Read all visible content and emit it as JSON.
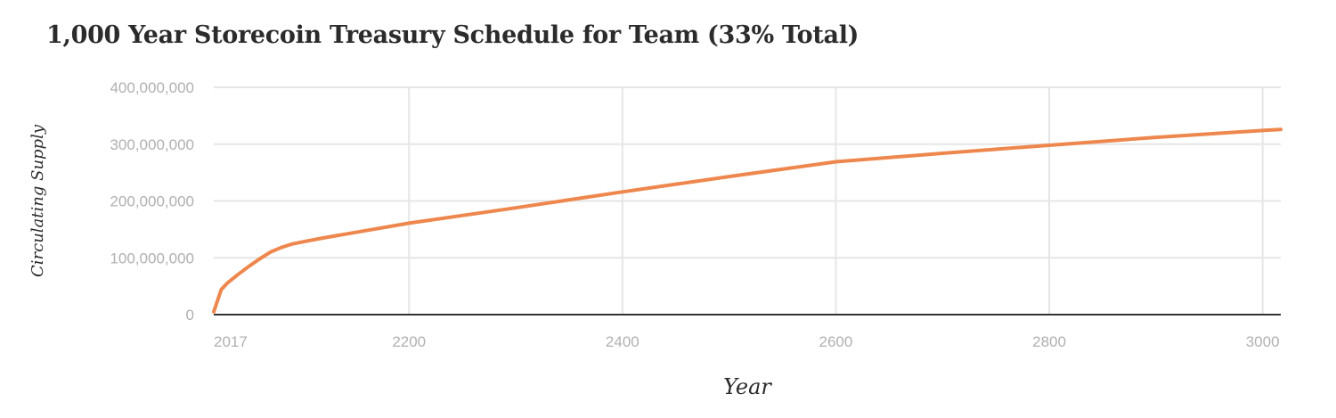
{
  "chart_data": {
    "type": "line",
    "title": "1,000 Year Storecoin Treasury Schedule for Team (33% Total)",
    "xlabel": "Year",
    "ylabel": "Circulating Supply",
    "xlim": [
      2017,
      3017
    ],
    "ylim": [
      0,
      400000000
    ],
    "x_ticks": [
      {
        "value": 2017,
        "label": "2017"
      },
      {
        "value": 2200,
        "label": "2200"
      },
      {
        "value": 2400,
        "label": "2400"
      },
      {
        "value": 2600,
        "label": "2600"
      },
      {
        "value": 2800,
        "label": "2800"
      },
      {
        "value": 3000,
        "label": "3000"
      }
    ],
    "y_ticks": [
      {
        "value": 0,
        "label": "0"
      },
      {
        "value": 100000000,
        "label": "100,000,000"
      },
      {
        "value": 200000000,
        "label": "200,000,000"
      },
      {
        "value": 300000000,
        "label": "300,000,000"
      },
      {
        "value": 400000000,
        "label": "400,000,000"
      }
    ],
    "grid": true,
    "legend": "none",
    "color": "#ee874d",
    "series": [
      {
        "x": [
          2017,
          2024,
          2030,
          2040,
          2050,
          2060,
          2070,
          2080,
          2090,
          2100,
          2120,
          2200,
          2300,
          2400,
          2500,
          2600,
          2700,
          2800,
          2900,
          3000,
          3017
        ],
        "values": [
          5000000,
          44000000,
          56000000,
          71000000,
          85000000,
          98000000,
          110000000,
          118000000,
          124000000,
          128000000,
          135000000,
          161000000,
          188000000,
          216000000,
          243000000,
          269000000,
          284000000,
          298000000,
          312000000,
          324000000,
          326000000
        ]
      }
    ]
  }
}
